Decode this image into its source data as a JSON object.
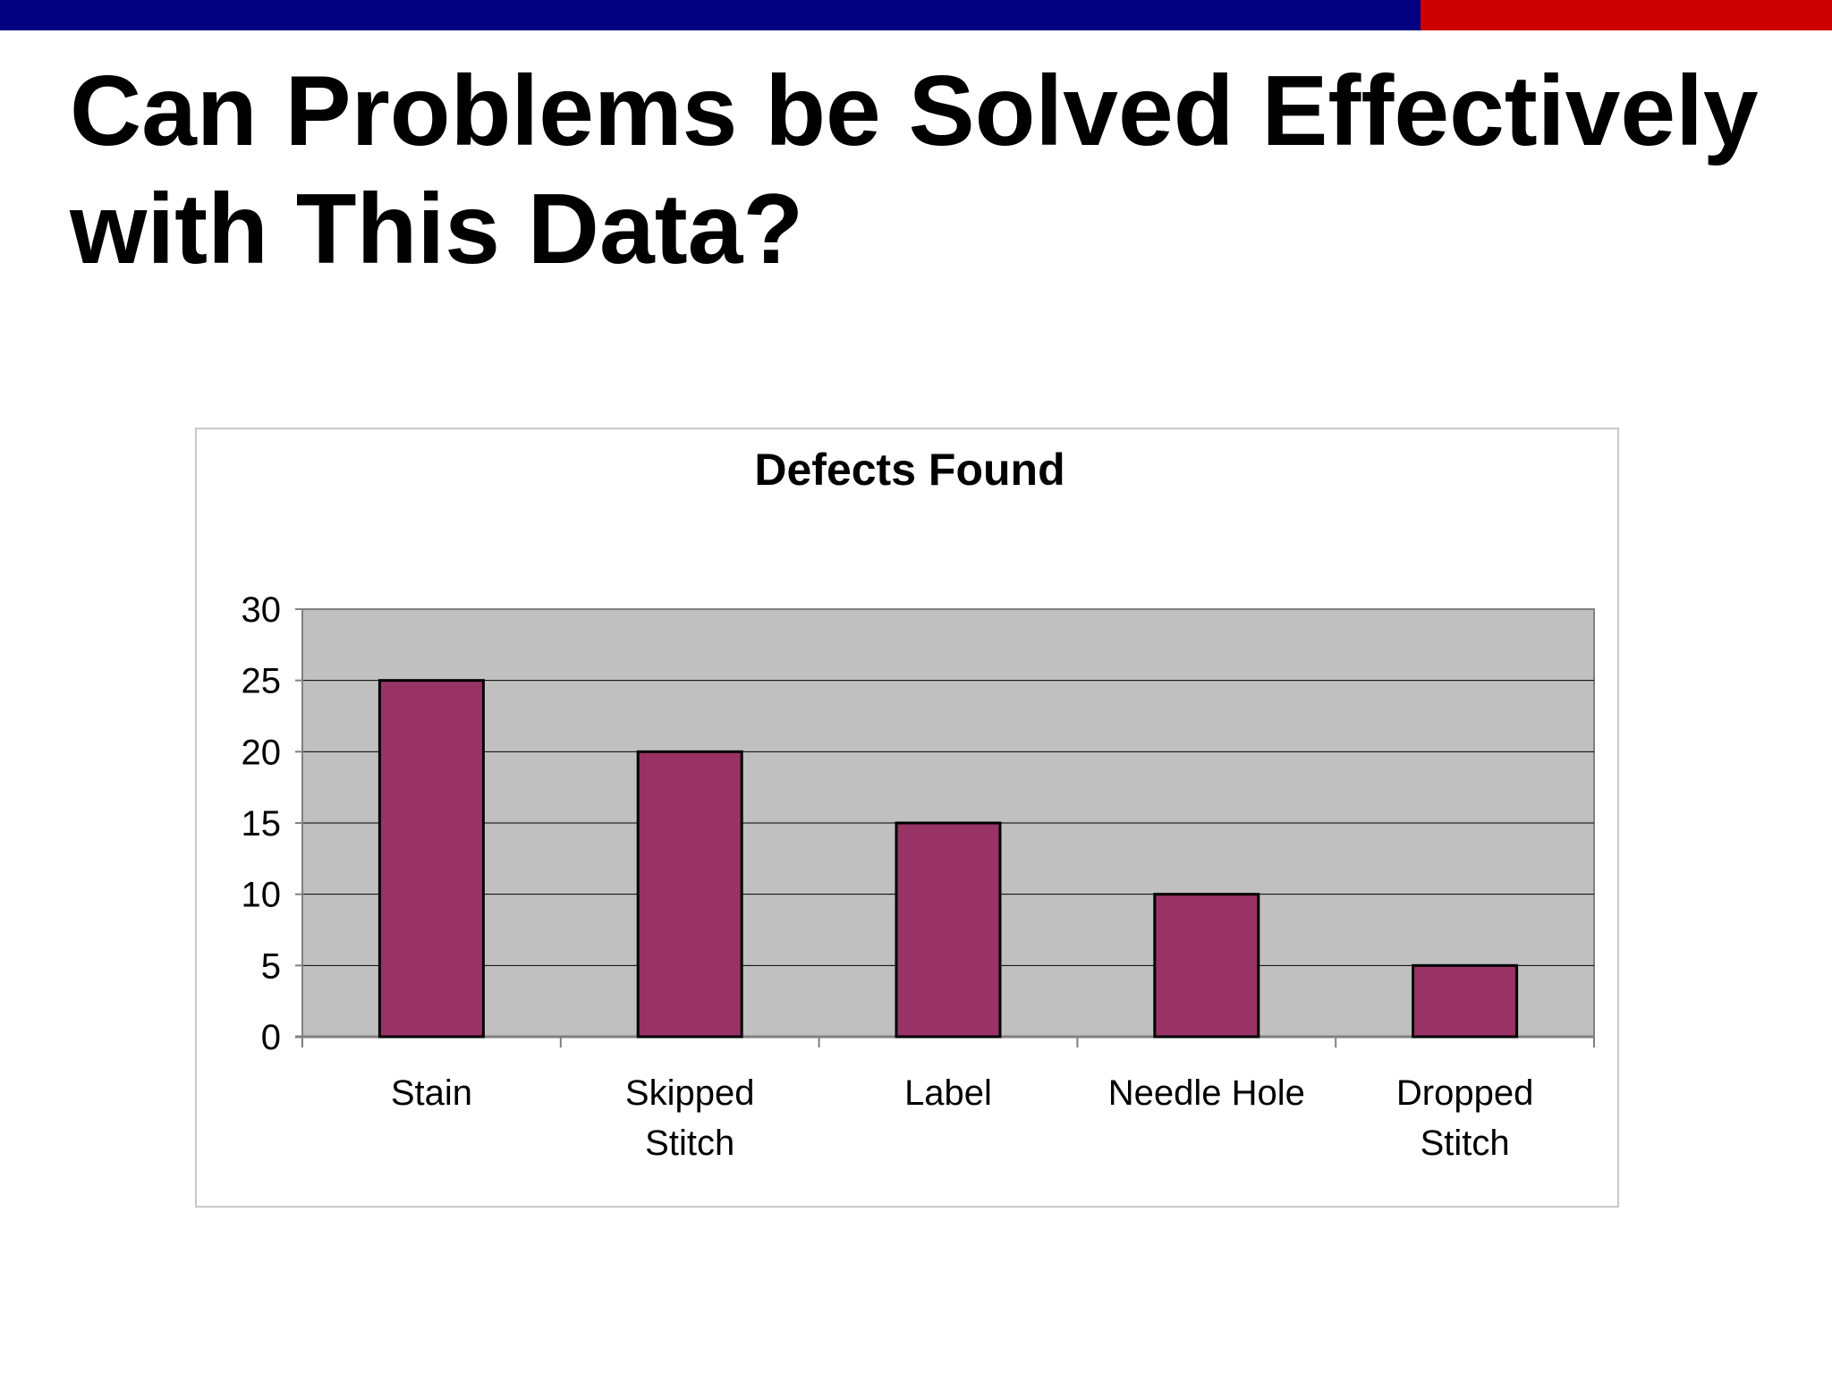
{
  "slide": {
    "title_lines": [
      "Can Problems be Solved Effectively",
      "with This Data?"
    ],
    "colors": {
      "top_bar_blue": "#000080",
      "top_bar_red": "#cc0000"
    }
  },
  "chart_data": {
    "type": "bar",
    "title": "Defects Found",
    "categories": [
      [
        "Stain"
      ],
      [
        "Skipped",
        "Stitch"
      ],
      [
        "Label"
      ],
      [
        "Needle Hole"
      ],
      [
        "Dropped",
        "Stitch"
      ]
    ],
    "values": [
      25,
      20,
      15,
      10,
      5
    ],
    "ylim": [
      0,
      30
    ],
    "yticks": [
      0,
      5,
      10,
      15,
      20,
      25,
      30
    ],
    "xlabel": "",
    "ylabel": "",
    "grid": true,
    "legend": "none",
    "colors": {
      "bar": "#993366",
      "plot_background": "#c0c0c0"
    }
  }
}
